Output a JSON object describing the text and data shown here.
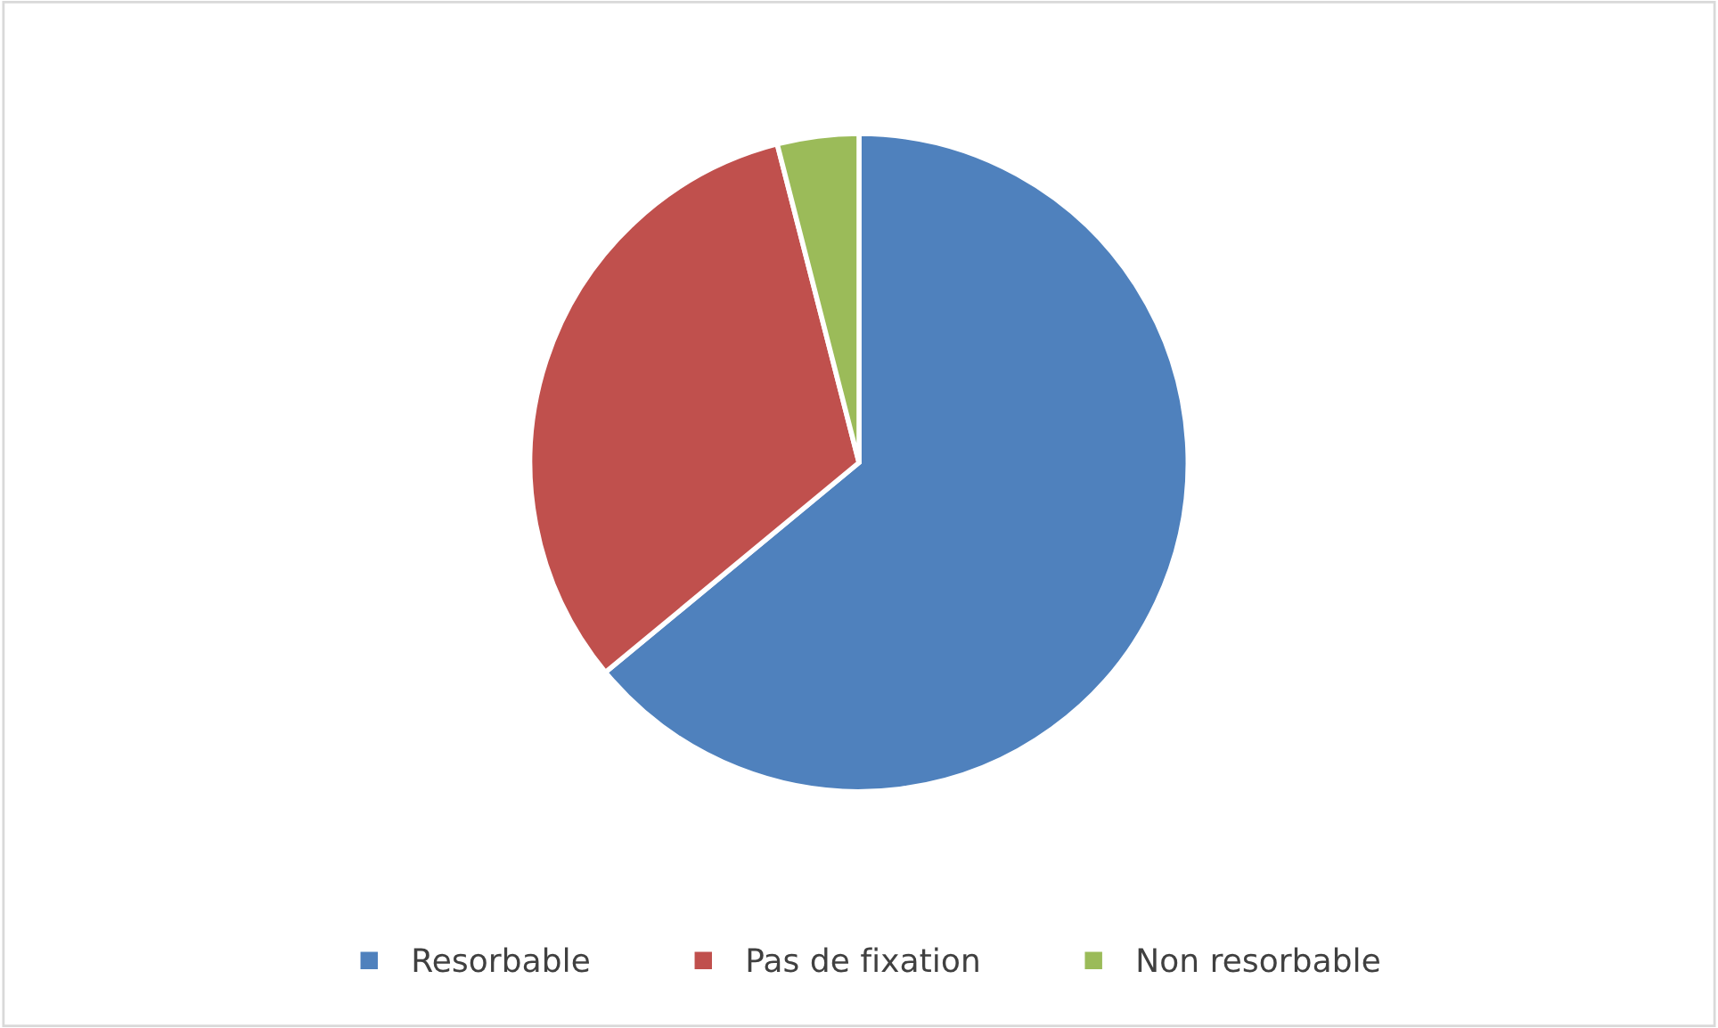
{
  "chart_data": {
    "type": "pie",
    "categories": [
      "Resorbable",
      "Pas de fixation",
      "Non resorbable"
    ],
    "values": [
      64,
      32,
      4
    ],
    "colors": [
      "#4f81bd",
      "#c0504d",
      "#9bbb59"
    ],
    "legend": "bottom"
  }
}
